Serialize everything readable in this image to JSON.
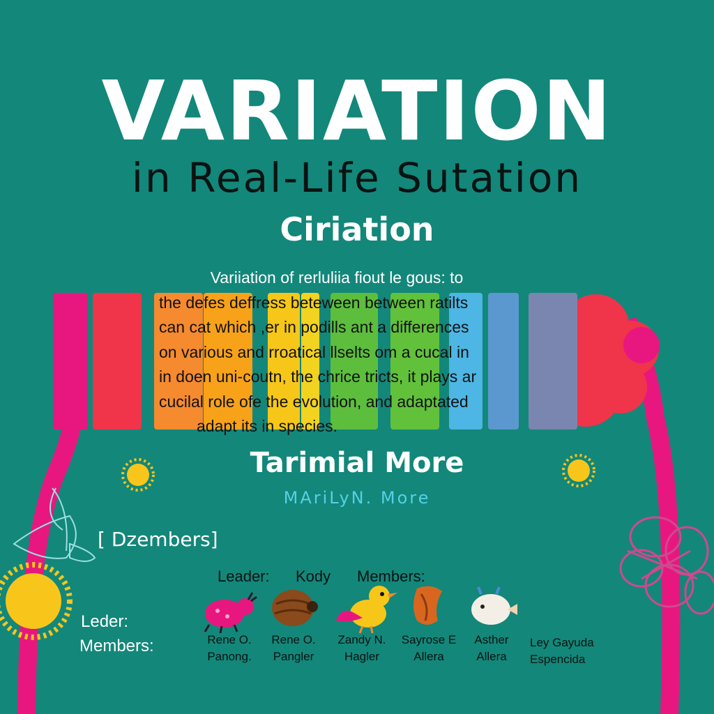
{
  "title": "VARIATION",
  "subtitle": "in Real-Life Sutation",
  "heading": "Ciriation",
  "description_lines": [
    "Variiation of rerluliia fiout le gous: to",
    "the defes deffress beteween between ratilts",
    "can cat which ,er in podills ant a differences",
    "on various and rroatical llselts om a cucal in",
    "in doen uni-coutn, the chrice tricts, it plays ar",
    "cucilal role ofe the evolution, and adaptated",
    "adapt its in species."
  ],
  "team_title": "Tarimial More",
  "team_subtitle": "MAriLyN. More",
  "members_box": "[ Dzembers]",
  "leader_label": "Leader:",
  "leader_name": "Kody",
  "members_label": "Members:",
  "side_leader_label": "Leder:",
  "side_members_label": "Members:",
  "members": [
    {
      "line1": "Rene O.",
      "line2": "Panong.",
      "icon": "pink-ant-icon"
    },
    {
      "line1": "Rene O.",
      "line2": "Pangler",
      "icon": "brown-beetle-icon"
    },
    {
      "line1": "Zandy N.",
      "line2": "Hagler",
      "icon": "yellow-bird-icon"
    },
    {
      "line1": "Sayrose E",
      "line2": "Allera",
      "icon": "orange-leaf-icon"
    },
    {
      "line1": "Asther",
      "line2": "Allera",
      "icon": "white-creature-icon"
    },
    {
      "line1": "Ley Gayuda",
      "line2": "Espencida",
      "icon": ""
    }
  ],
  "colors": {
    "background": "#13877a",
    "magenta": "#e8177f",
    "red": "#f0344a",
    "orange": "#f58a2f",
    "amber": "#f8a21a",
    "yellow": "#f6c719",
    "green": "#5cbe3c",
    "sky": "#4db6e4",
    "blue": "#5b98cf",
    "slate": "#7a86b0",
    "sun": "#f8c61a",
    "accent_text": "#55d0e6"
  }
}
